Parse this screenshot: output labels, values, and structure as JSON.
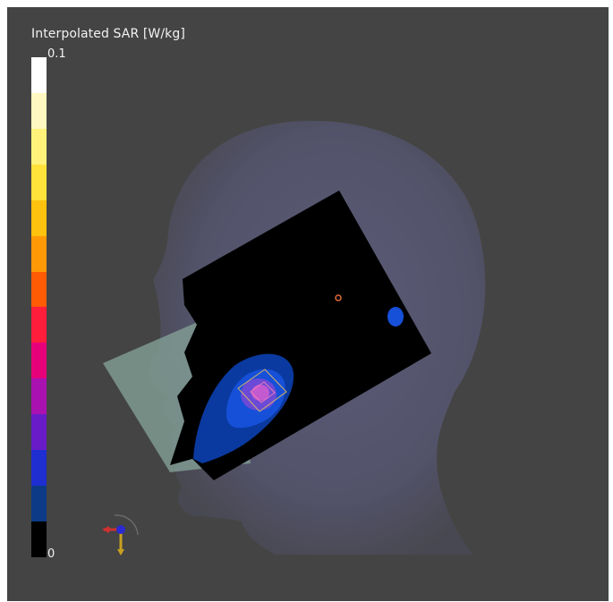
{
  "legend": {
    "title": "Interpolated SAR [W/kg]",
    "max_label": "0.1",
    "min_label": "0",
    "colors": [
      "#ffffff",
      "#fff8c0",
      "#fff27a",
      "#ffe23a",
      "#ffc20e",
      "#ff9a06",
      "#ff5a04",
      "#ff1d3c",
      "#e6007a",
      "#a912b0",
      "#6a1bc8",
      "#1e2ed0",
      "#0c3a86",
      "#000000"
    ]
  },
  "scene": {
    "background": "#444444",
    "head_color": "#5a5a78",
    "sar_plane_color": "#000000",
    "phone_color": "#7f9a92",
    "hotspot_colors": [
      "#0a3aa0",
      "#1650d8",
      "#6a4ad6",
      "#c45ad0"
    ],
    "icons": [
      "orientation-axes-icon"
    ]
  }
}
